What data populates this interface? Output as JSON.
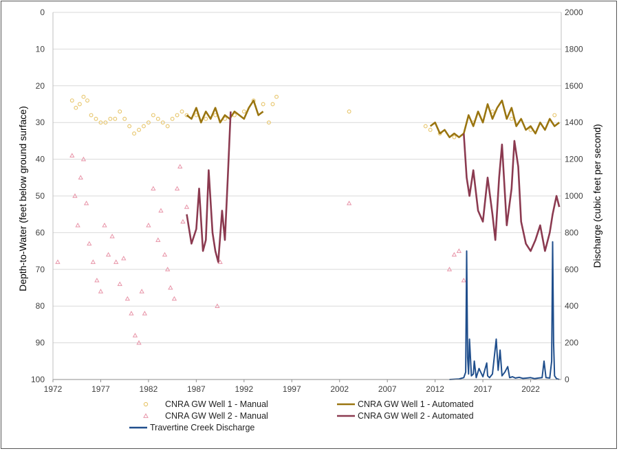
{
  "chart_data": {
    "type": "line",
    "xlabel": "",
    "ylabel_left": "Depth-to-Water (feet below ground surface)",
    "ylabel_right": "Discharge (cubic feet per second)",
    "x_ticks": [
      "1972",
      "1977",
      "1982",
      "1987",
      "1992",
      "1997",
      "2002",
      "2007",
      "2012",
      "2017",
      "2022"
    ],
    "y_left_ticks": [
      "0",
      "10",
      "20",
      "30",
      "40",
      "50",
      "60",
      "70",
      "80",
      "90",
      "100"
    ],
    "y_right_ticks": [
      "0",
      "200",
      "400",
      "600",
      "800",
      "1000",
      "1200",
      "1400",
      "1600",
      "1800",
      "2000"
    ],
    "xlim": [
      1972,
      2025.2
    ],
    "ylim_left": [
      0,
      100
    ],
    "ylim_left_inverted": true,
    "ylim_right": [
      0,
      2000
    ],
    "legend_position": "bottom",
    "series": [
      {
        "name": "CNRA GW Well 1 - Manual",
        "style": "markers-circle",
        "axis": "left",
        "color": "#e7c56a",
        "x": [
          1974.0,
          1974.4,
          1974.8,
          1975.2,
          1975.6,
          1976.0,
          1976.5,
          1977.0,
          1977.5,
          1978.0,
          1978.5,
          1979.0,
          1979.5,
          1980.0,
          1980.5,
          1981.0,
          1981.5,
          1982.0,
          1982.5,
          1983.0,
          1983.5,
          1984.0,
          1984.5,
          1985.0,
          1985.5,
          1986.0,
          1987.0,
          1988.0,
          1989.0,
          1990.0,
          1991.0,
          1992.0,
          1993.0,
          1994.0,
          1994.6,
          1995.0,
          1995.4,
          2003.0,
          2011.0,
          2011.5,
          2012.5,
          2014.0,
          2016.0,
          2018.0,
          2020.0,
          2022.0,
          2024.5
        ],
        "y": [
          24,
          26,
          25,
          23,
          24,
          28,
          29,
          30,
          30,
          29,
          29,
          27,
          29,
          31,
          33,
          32,
          31,
          30,
          28,
          29,
          30,
          31,
          29,
          28,
          27,
          28,
          28,
          29,
          28,
          29,
          28,
          27,
          24,
          25,
          30,
          25,
          23,
          27,
          31,
          32,
          33,
          34,
          30,
          27,
          29,
          32,
          28
        ]
      },
      {
        "name": "CNRA GW Well 2 - Manual",
        "style": "markers-triangle",
        "axis": "left",
        "color": "#e894a8",
        "x": [
          1972.5,
          1974.0,
          1974.3,
          1974.6,
          1974.9,
          1975.2,
          1975.5,
          1975.8,
          1976.2,
          1976.6,
          1977.0,
          1977.4,
          1977.8,
          1978.2,
          1978.6,
          1979.0,
          1979.4,
          1979.8,
          1980.2,
          1980.6,
          1981.0,
          1981.3,
          1981.6,
          1982.0,
          1982.5,
          1983.0,
          1983.3,
          1983.7,
          1984.0,
          1984.3,
          1984.7,
          1985.0,
          1985.3,
          1985.6,
          1986.0,
          1989.2,
          1989.5,
          2003.0,
          2013.5,
          2014.0,
          2014.5,
          2015.0
        ],
        "y": [
          68,
          39,
          50,
          58,
          45,
          40,
          52,
          63,
          68,
          73,
          76,
          58,
          66,
          61,
          68,
          74,
          67,
          78,
          82,
          88,
          90,
          76,
          82,
          58,
          48,
          62,
          54,
          66,
          70,
          75,
          78,
          48,
          42,
          57,
          53,
          80,
          68,
          52,
          70,
          66,
          65,
          73
        ]
      },
      {
        "name": "CNRA GW Well 1 - Automated",
        "style": "line",
        "axis": "left",
        "color": "#9a7510",
        "x": [
          1986.0,
          1986.5,
          1987.0,
          1987.5,
          1988.0,
          1988.5,
          1989.0,
          1989.5,
          1990.0,
          1990.5,
          1991.0,
          1991.5,
          1992.0,
          1992.5,
          1993.0,
          1993.5,
          1994.0,
          2011.5,
          2012.0,
          2012.5,
          2013.0,
          2013.5,
          2014.0,
          2014.5,
          2015.0,
          2015.5,
          2016.0,
          2016.5,
          2017.0,
          2017.5,
          2018.0,
          2018.5,
          2019.0,
          2019.5,
          2020.0,
          2020.5,
          2021.0,
          2021.5,
          2022.0,
          2022.5,
          2023.0,
          2023.5,
          2024.0,
          2024.5,
          2025.0
        ],
        "y": [
          28,
          29,
          26,
          30,
          27,
          29,
          26,
          30,
          28,
          29,
          27,
          28,
          29,
          26,
          24,
          28,
          27,
          31,
          30,
          33,
          32,
          34,
          33,
          34,
          33,
          28,
          31,
          27,
          30,
          25,
          29,
          26,
          24,
          29,
          26,
          31,
          29,
          32,
          31,
          33,
          30,
          32,
          29,
          31,
          30
        ]
      },
      {
        "name": "CNRA GW Well 2 - Automated",
        "style": "line",
        "axis": "left",
        "color": "#8b3a50",
        "x": [
          1986.0,
          1986.5,
          1987.0,
          1987.3,
          1987.7,
          1988.0,
          1988.3,
          1988.7,
          1989.0,
          1989.3,
          1989.7,
          1990.0,
          1990.3,
          1990.6,
          2015.0,
          2015.3,
          2015.6,
          2016.0,
          2016.5,
          2017.0,
          2017.5,
          2018.0,
          2018.3,
          2018.7,
          2019.0,
          2019.5,
          2020.0,
          2020.3,
          2020.7,
          2021.0,
          2021.5,
          2022.0,
          2022.5,
          2023.0,
          2023.5,
          2024.0,
          2024.3,
          2024.7,
          2025.0
        ],
        "y": [
          55,
          63,
          59,
          48,
          65,
          62,
          43,
          60,
          65,
          68,
          54,
          62,
          45,
          27,
          33,
          45,
          50,
          43,
          54,
          57,
          45,
          55,
          62,
          45,
          36,
          58,
          48,
          35,
          42,
          57,
          63,
          65,
          62,
          58,
          65,
          60,
          55,
          50,
          53
        ]
      },
      {
        "name": "Travertine Creek Discharge",
        "style": "line",
        "axis": "right",
        "color": "#1f4e8c",
        "x": [
          2013.5,
          2014.5,
          2015.0,
          2015.2,
          2015.3,
          2015.4,
          2015.5,
          2015.6,
          2015.8,
          2016.0,
          2016.1,
          2016.3,
          2016.6,
          2017.0,
          2017.4,
          2017.5,
          2017.7,
          2018.0,
          2018.4,
          2018.6,
          2018.8,
          2019.0,
          2019.3,
          2019.6,
          2019.8,
          2020.1,
          2020.4,
          2020.8,
          2021.2,
          2021.6,
          2022.0,
          2022.4,
          2022.8,
          2023.2,
          2023.4,
          2023.6,
          2024.0,
          2024.2,
          2024.3,
          2024.4,
          2024.5,
          2024.7,
          2025.0
        ],
        "y": [
          0,
          3,
          10,
          40,
          700,
          120,
          30,
          220,
          20,
          30,
          100,
          10,
          60,
          15,
          90,
          20,
          10,
          30,
          220,
          50,
          160,
          20,
          40,
          70,
          10,
          15,
          8,
          12,
          6,
          8,
          10,
          5,
          8,
          10,
          100,
          10,
          8,
          100,
          750,
          200,
          20,
          5,
          0
        ]
      }
    ]
  }
}
